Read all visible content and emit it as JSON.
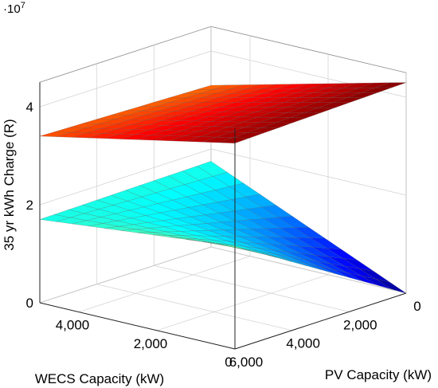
{
  "chart_data": {
    "type": "surface3d",
    "z_scale_label": "·10",
    "z_scale_exponent": "7",
    "z_multiplier": 10000000,
    "zlabel": "35 yr kWh Charge (R)",
    "xlabel": "WECS Capacity (kW)",
    "ylabel": "PV Capacity (kW)",
    "z_ticks": [
      {
        "value": 0,
        "label": "0"
      },
      {
        "value": 2,
        "label": "2"
      },
      {
        "value": 4,
        "label": "4"
      }
    ],
    "x_ticks": [
      {
        "value": 0,
        "label": "0"
      },
      {
        "value": 2000,
        "label": "2,000"
      },
      {
        "value": 4000,
        "label": "4,000"
      }
    ],
    "y_ticks": [
      {
        "value": 0,
        "label": "0"
      },
      {
        "value": 2000,
        "label": "2,000"
      },
      {
        "value": 4000,
        "label": "4,000"
      },
      {
        "value": 6000,
        "label": "6,000"
      }
    ],
    "xlim": [
      0,
      5000
    ],
    "ylim": [
      0,
      6000
    ],
    "zlim": [
      0,
      4.5
    ],
    "grid": true,
    "colormap": "jet",
    "surfaces": [
      {
        "corner_values": {
          "wecs0_pv0": 0.0,
          "wecs5000_pv0": 1.75,
          "wecs0_pv6000": 2.1,
          "wecs5000_pv6000": 1.7
        },
        "note_free": true
      },
      {
        "corner_values": {
          "wecs0_pv0": 4.3,
          "wecs5000_pv0": 3.3,
          "wecs0_pv6000": 4.2,
          "wecs5000_pv6000": 3.4
        }
      }
    ]
  }
}
